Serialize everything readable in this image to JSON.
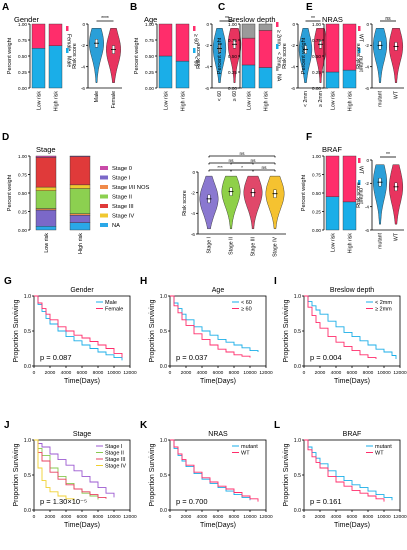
{
  "colors": {
    "red": "#ff2d6b",
    "blue": "#1aaee8",
    "gray": "#9a9a9a",
    "violin_blue": "#2a9fd8",
    "violin_red": "#e8345f",
    "violin_purple": "#8a78d0",
    "violin_green": "#8fd048",
    "violin_red2": "#e0486a",
    "violin_yellow": "#f5c230",
    "stage0": "#c94aa8",
    "stage1": "#7b68c8",
    "stage12": "#f08a4a",
    "stage2": "#8cd050",
    "stage3": "#e03a3a",
    "stage4": "#f0c830",
    "stageNA": "#2aa8e8",
    "km_purple": "#9b59d0",
    "km_green": "#88c850",
    "km_red": "#e84060",
    "km_yellow": "#f0d030"
  },
  "chart_data": [
    {
      "id": "A",
      "type": "bar",
      "title": "Gender",
      "ylabel": "Percent weight",
      "ylim": [
        0,
        1
      ],
      "yticks": [
        "0.00",
        "0.25",
        "0.50",
        "0.75",
        "1.00"
      ],
      "categories": [
        "Low risk",
        "High risk"
      ],
      "series": [
        {
          "name": "Male",
          "values": [
            0.62,
            0.66
          ]
        },
        {
          "name": "Female",
          "values": [
            0.38,
            0.34
          ]
        }
      ]
    },
    {
      "id": "A2",
      "type": "violin",
      "ylabel": "Risk score",
      "significance": "****",
      "ylim": [
        -6,
        0
      ],
      "yticks": [
        "-6",
        "-4",
        "-2",
        "0"
      ],
      "categories": [
        "Male",
        "Female"
      ],
      "medians": [
        -1.8,
        -2.4
      ]
    },
    {
      "id": "B",
      "type": "bar",
      "title": "Age",
      "ylabel": "Percent weight",
      "ylim": [
        0,
        1
      ],
      "yticks": [
        "0.00",
        "0.25",
        "0.50",
        "0.75",
        "1.00"
      ],
      "categories": [
        "Low risk",
        "High risk"
      ],
      "series": [
        {
          "name": "< 60",
          "values": [
            0.5,
            0.42
          ]
        },
        {
          "name": "≥ 60",
          "values": [
            0.5,
            0.58
          ]
        }
      ]
    },
    {
      "id": "B2",
      "type": "violin",
      "ylabel": "Risk score",
      "significance": "**",
      "ylim": [
        -6,
        0
      ],
      "yticks": [
        "-6",
        "-4",
        "-2",
        "0"
      ],
      "categories": [
        "< 60",
        "≥ 60"
      ],
      "medians": [
        -2.3,
        -1.9
      ]
    },
    {
      "id": "C",
      "type": "bar",
      "title": "Breslow depth",
      "ylabel": "Percent weight",
      "ylim": [
        0,
        1
      ],
      "yticks": [
        "0.00",
        "0.25",
        "0.50",
        "0.75",
        "1.00"
      ],
      "categories": [
        "Low risk",
        "High risk"
      ],
      "series": [
        {
          "name": "< 2mm",
          "values": [
            0.36,
            0.32
          ]
        },
        {
          "name": "≥ 2mm",
          "values": [
            0.42,
            0.58
          ]
        },
        {
          "name": "NA",
          "values": [
            0.22,
            0.1
          ]
        }
      ]
    },
    {
      "id": "C2",
      "type": "violin",
      "ylabel": "Risk score",
      "significance": "**",
      "ylim": [
        -6,
        0
      ],
      "yticks": [
        "-6",
        "-4",
        "-2",
        "0"
      ],
      "categories": [
        "< 2mm",
        "≥ 2mm"
      ],
      "medians": [
        -2.4,
        -1.9
      ]
    },
    {
      "id": "E",
      "type": "bar",
      "title": "NRAS",
      "ylabel": "Percent weight",
      "ylim": [
        0,
        1
      ],
      "yticks": [
        "0.00",
        "0.25",
        "0.50",
        "0.75",
        "1.00"
      ],
      "categories": [
        "Low risk",
        "High risk"
      ],
      "series": [
        {
          "name": "mutant",
          "values": [
            0.25,
            0.28
          ]
        },
        {
          "name": "WT",
          "values": [
            0.75,
            0.72
          ]
        }
      ]
    },
    {
      "id": "E2",
      "type": "violin",
      "ylabel": "Risk score",
      "significance": "ns",
      "ylim": [
        -6,
        0
      ],
      "yticks": [
        "-6",
        "-4",
        "-2",
        "0"
      ],
      "categories": [
        "mutant",
        "WT"
      ],
      "medians": [
        -2.0,
        -2.1
      ]
    },
    {
      "id": "D",
      "type": "bar",
      "title": "Stage",
      "ylabel": "Percent weight",
      "ylim": [
        0,
        1
      ],
      "yticks": [
        "0.00",
        "0.25",
        "0.50",
        "0.75",
        "1.00"
      ],
      "categories": [
        "Low risk",
        "High risk"
      ],
      "series": [
        {
          "name": "Stage 0",
          "values": [
            0.02,
            0.01
          ]
        },
        {
          "name": "Stage I",
          "values": [
            0.22,
            0.1
          ]
        },
        {
          "name": "Stage I/II NOS",
          "values": [
            0.02,
            0.02
          ]
        },
        {
          "name": "Stage II",
          "values": [
            0.24,
            0.34
          ]
        },
        {
          "name": "Stage III",
          "values": [
            0.4,
            0.38
          ]
        },
        {
          "name": "Stage IV",
          "values": [
            0.05,
            0.05
          ]
        },
        {
          "name": "NA",
          "values": [
            0.05,
            0.1
          ]
        }
      ]
    },
    {
      "id": "D2",
      "type": "violin",
      "ylabel": "Risk score",
      "ylim": [
        -6,
        0
      ],
      "yticks": [
        "-6",
        "-4",
        "-2",
        "0"
      ],
      "categories": [
        "Stage I",
        "Stage II",
        "Stage III",
        "Stage IV"
      ],
      "medians": [
        -2.6,
        -1.9,
        -2.0,
        -2.1
      ],
      "brackets": [
        {
          "from": 0,
          "to": 1,
          "label": "***"
        },
        {
          "from": 1,
          "to": 2,
          "label": "*"
        },
        {
          "from": 2,
          "to": 3,
          "label": "ns"
        },
        {
          "from": 0,
          "to": 2,
          "label": "ns"
        },
        {
          "from": 1,
          "to": 3,
          "label": "ns"
        },
        {
          "from": 0,
          "to": 3,
          "label": "ns"
        }
      ]
    },
    {
      "id": "F",
      "type": "bar",
      "title": "BRAF",
      "ylabel": "Percent weight",
      "ylim": [
        0,
        1
      ],
      "yticks": [
        "0.00",
        "0.25",
        "0.50",
        "0.75",
        "1.00"
      ],
      "categories": [
        "Low risk",
        "High risk"
      ],
      "series": [
        {
          "name": "mutant",
          "values": [
            0.45,
            0.38
          ]
        },
        {
          "name": "WT",
          "values": [
            0.55,
            0.62
          ]
        }
      ]
    },
    {
      "id": "F2",
      "type": "violin",
      "ylabel": "Risk score",
      "significance": "**",
      "ylim": [
        -6,
        0
      ],
      "yticks": [
        "-6",
        "-4",
        "-2",
        "0"
      ],
      "categories": [
        "mutant",
        "WT"
      ],
      "medians": [
        -1.9,
        -2.3
      ]
    },
    {
      "id": "G",
      "type": "line",
      "title": "Gender",
      "xlabel": "Time(Days)",
      "ylabel": "Proportion Surviving",
      "xlim": [
        0,
        12000
      ],
      "ylim": [
        0,
        1
      ],
      "xticks": [
        "0",
        "2000",
        "4000",
        "6000",
        "8000",
        "10000",
        "12000"
      ],
      "yticks": [
        "0.0",
        "0.5",
        "1.0"
      ],
      "pvalue": "p = 0.087",
      "series": [
        {
          "name": "Male",
          "x": [
            0,
            500,
            1000,
            1500,
            2000,
            3000,
            4000,
            5000,
            6000,
            7000,
            8000,
            9000,
            10000,
            11000
          ],
          "y": [
            1.0,
            0.88,
            0.78,
            0.68,
            0.6,
            0.5,
            0.42,
            0.36,
            0.3,
            0.25,
            0.2,
            0.16,
            0.12,
            0.08
          ]
        },
        {
          "name": "Female",
          "x": [
            0,
            500,
            1000,
            1500,
            2000,
            3000,
            4000,
            5000,
            6000,
            7000,
            8000,
            9000,
            10000,
            11000
          ],
          "y": [
            1.0,
            0.9,
            0.82,
            0.74,
            0.66,
            0.56,
            0.5,
            0.44,
            0.4,
            0.35,
            0.3,
            0.25,
            0.18,
            0.12
          ]
        }
      ]
    },
    {
      "id": "H",
      "type": "line",
      "title": "Age",
      "xlabel": "Time(Days)",
      "ylabel": "Proportion Surviving",
      "xlim": [
        0,
        12000
      ],
      "ylim": [
        0,
        1
      ],
      "xticks": [
        "0",
        "2000",
        "4000",
        "6000",
        "8000",
        "10000",
        "12000"
      ],
      "yticks": [
        "0.0",
        "0.5",
        "1.0"
      ],
      "pvalue": "p = 0.037",
      "series": [
        {
          "name": "< 60",
          "x": [
            0,
            500,
            1000,
            1500,
            2000,
            3000,
            4000,
            5000,
            6000,
            7000,
            8000,
            9000,
            10000,
            11000
          ],
          "y": [
            1.0,
            0.9,
            0.82,
            0.74,
            0.66,
            0.56,
            0.5,
            0.44,
            0.38,
            0.34,
            0.3,
            0.26,
            0.22,
            0.2
          ]
        },
        {
          "name": "≥ 60",
          "x": [
            0,
            500,
            1000,
            1500,
            2000,
            3000,
            4000,
            5000,
            6000,
            7000,
            8000,
            9000,
            10000
          ],
          "y": [
            1.0,
            0.86,
            0.76,
            0.66,
            0.58,
            0.46,
            0.38,
            0.3,
            0.24,
            0.2,
            0.16,
            0.14,
            0.12
          ]
        }
      ]
    },
    {
      "id": "I",
      "type": "line",
      "title": "Breslow depth",
      "xlabel": "Time(Days)",
      "ylabel": "Proportion Surviving",
      "xlim": [
        0,
        12000
      ],
      "ylim": [
        0,
        1
      ],
      "xticks": [
        "0",
        "2000",
        "4000",
        "6000",
        "8000",
        "10000",
        "12000"
      ],
      "yticks": [
        "0.0",
        "0.5",
        "1.0"
      ],
      "pvalue": "p = 0.004",
      "series": [
        {
          "name": "< 2mm",
          "x": [
            0,
            500,
            1000,
            1500,
            2000,
            3000,
            4000,
            5000,
            6000,
            7000,
            8000,
            9000,
            10000,
            11000,
            11500
          ],
          "y": [
            1.0,
            0.92,
            0.86,
            0.8,
            0.74,
            0.64,
            0.56,
            0.48,
            0.42,
            0.36,
            0.3,
            0.24,
            0.2,
            0.15,
            0.1
          ]
        },
        {
          "name": "≥ 2mm",
          "x": [
            0,
            500,
            1000,
            1500,
            2000,
            3000,
            4000,
            5000,
            6000,
            7000,
            8000,
            9000
          ],
          "y": [
            1.0,
            0.84,
            0.72,
            0.62,
            0.54,
            0.42,
            0.34,
            0.28,
            0.22,
            0.16,
            0.12,
            0.1
          ]
        }
      ]
    },
    {
      "id": "J",
      "type": "line",
      "title": "Stage",
      "xlabel": "Time(Days)",
      "ylabel": "Proportion Surviving",
      "xlim": [
        0,
        12000
      ],
      "ylim": [
        0,
        1
      ],
      "xticks": [
        "0",
        "2000",
        "4000",
        "6000",
        "8000",
        "10000",
        "12000"
      ],
      "yticks": [
        "0.0",
        "0.5",
        "1.0"
      ],
      "pvalue": "p = 1.30×10⁻⁵",
      "series": [
        {
          "name": "Stage I",
          "x": [
            0,
            500,
            1000,
            2000,
            3000,
            4000,
            5000,
            6000,
            7000,
            8000,
            9000,
            10000
          ],
          "y": [
            1.0,
            0.95,
            0.9,
            0.8,
            0.72,
            0.64,
            0.56,
            0.48,
            0.4,
            0.32,
            0.24,
            0.18
          ]
        },
        {
          "name": "Stage II",
          "x": [
            0,
            500,
            1000,
            2000,
            3000,
            4000,
            5000,
            6000,
            7000,
            8000
          ],
          "y": [
            1.0,
            0.88,
            0.78,
            0.6,
            0.48,
            0.38,
            0.3,
            0.24,
            0.2,
            0.15
          ]
        },
        {
          "name": "Stage III",
          "x": [
            0,
            500,
            1000,
            2000,
            3000,
            4000,
            5000,
            6000,
            7000,
            8000,
            9000
          ],
          "y": [
            1.0,
            0.82,
            0.7,
            0.54,
            0.44,
            0.36,
            0.3,
            0.26,
            0.22,
            0.18,
            0.16
          ]
        },
        {
          "name": "Stage IV",
          "x": [
            0,
            500,
            1000,
            1500,
            2000,
            3000,
            4000,
            5000
          ],
          "y": [
            1.0,
            0.6,
            0.42,
            0.32,
            0.26,
            0.2,
            0.16,
            0.12
          ]
        }
      ]
    },
    {
      "id": "K",
      "type": "line",
      "title": "NRAS",
      "xlabel": "Time(Days)",
      "ylabel": "Proportion Surviving",
      "xlim": [
        0,
        12000
      ],
      "ylim": [
        0,
        1
      ],
      "xticks": [
        "0",
        "2000",
        "4000",
        "6000",
        "8000",
        "10000",
        "12000"
      ],
      "yticks": [
        "0.0",
        "0.5",
        "1.0"
      ],
      "pvalue": "p = 0.700",
      "series": [
        {
          "name": "mutant",
          "x": [
            0,
            500,
            1000,
            1500,
            2000,
            3000,
            4000,
            5000,
            6000,
            7000,
            8000,
            9000,
            10000
          ],
          "y": [
            1.0,
            0.88,
            0.78,
            0.7,
            0.62,
            0.52,
            0.44,
            0.38,
            0.32,
            0.27,
            0.22,
            0.18,
            0.14
          ]
        },
        {
          "name": "WT",
          "x": [
            0,
            500,
            1000,
            1500,
            2000,
            3000,
            4000,
            5000,
            6000,
            7000,
            8000,
            9000,
            10000,
            11000
          ],
          "y": [
            1.0,
            0.9,
            0.8,
            0.72,
            0.64,
            0.54,
            0.46,
            0.4,
            0.34,
            0.3,
            0.25,
            0.2,
            0.16,
            0.12
          ]
        }
      ]
    },
    {
      "id": "L",
      "type": "line",
      "title": "BRAF",
      "xlabel": "Time(Days)",
      "ylabel": "Proportion Surviving",
      "xlim": [
        0,
        12000
      ],
      "ylim": [
        0,
        1
      ],
      "xticks": [
        "0",
        "2000",
        "4000",
        "6000",
        "8000",
        "10000",
        "12000"
      ],
      "yticks": [
        "0.0",
        "0.5",
        "1.0"
      ],
      "pvalue": "p = 0.161",
      "series": [
        {
          "name": "mutant",
          "x": [
            0,
            500,
            1000,
            1500,
            2000,
            3000,
            4000,
            5000,
            6000,
            7000,
            8000,
            9000,
            10000,
            11000
          ],
          "y": [
            1.0,
            0.9,
            0.82,
            0.74,
            0.66,
            0.56,
            0.48,
            0.42,
            0.36,
            0.32,
            0.27,
            0.22,
            0.18,
            0.14
          ]
        },
        {
          "name": "WT",
          "x": [
            0,
            500,
            1000,
            1500,
            2000,
            3000,
            4000,
            5000,
            6000,
            7000,
            8000,
            9000,
            10000
          ],
          "y": [
            1.0,
            0.86,
            0.76,
            0.68,
            0.6,
            0.48,
            0.4,
            0.34,
            0.28,
            0.24,
            0.2,
            0.16,
            0.12
          ]
        }
      ]
    }
  ]
}
